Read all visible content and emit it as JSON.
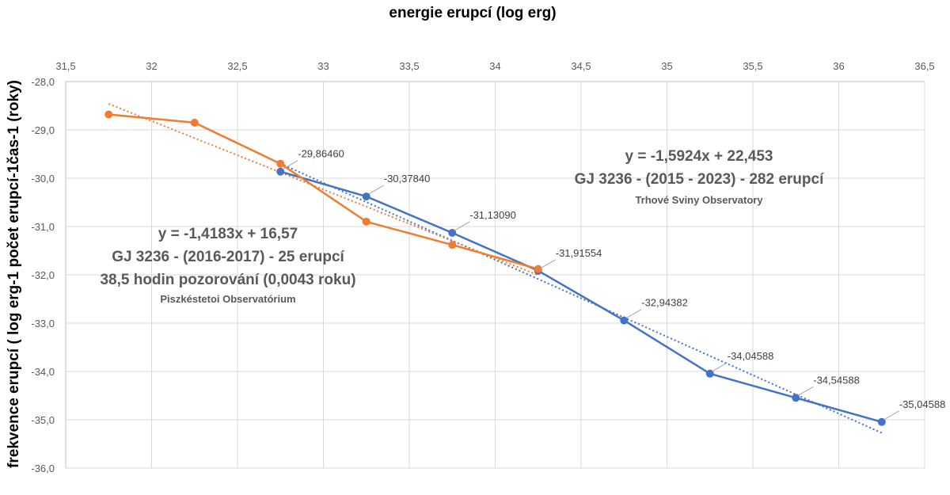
{
  "chart_data": {
    "type": "line",
    "title": "energie erupcí (log erg)",
    "ylabel": "frekvence erupcí ( log erg-1 počet erupcí-1čas-1 (roky)",
    "xlim": [
      31.5,
      36.5
    ],
    "ylim": [
      -36.0,
      -28.0
    ],
    "x_ticks": [
      31.5,
      32,
      32.5,
      33,
      33.5,
      34,
      34.5,
      35,
      35.5,
      36,
      36.5
    ],
    "x_tick_labels": [
      "31,5",
      "32",
      "32,5",
      "33",
      "33,5",
      "34",
      "34,5",
      "35",
      "35,5",
      "36",
      "36,5"
    ],
    "y_ticks": [
      -28,
      -29,
      -30,
      -31,
      -32,
      -33,
      -34,
      -35,
      -36
    ],
    "y_tick_labels": [
      "-28,0",
      "-29,0",
      "-30,0",
      "-31,0",
      "-32,0",
      "-33,0",
      "-34,0",
      "-35,0",
      "-36,0"
    ],
    "x_axis_position": "top",
    "grid": true,
    "series": [
      {
        "name": "GJ 3236 - (2015 - 2023) - 282 erupcí",
        "color": "#4472C4",
        "x": [
          32.75,
          33.25,
          33.75,
          34.25,
          34.75,
          35.25,
          35.75,
          36.25
        ],
        "y": [
          -29.8646,
          -30.3784,
          -31.1309,
          -31.91554,
          -32.94382,
          -34.04588,
          -34.54588,
          -35.04588
        ],
        "data_labels": [
          "-29,86460",
          "-30,37840",
          "-31,13090",
          "-31,91554",
          "-32,94382",
          "-34,04588",
          "-34,54588",
          "-35,04588"
        ],
        "trendline": {
          "slope": -1.5924,
          "intercept": 22.453,
          "x_range": [
            32.75,
            36.25
          ]
        }
      },
      {
        "name": "GJ 3236 - (2016-2017) - 25 erupcí",
        "color": "#ED7D31",
        "x": [
          31.75,
          32.25,
          32.75,
          33.25,
          33.75,
          34.25
        ],
        "y": [
          -28.68,
          -28.85,
          -29.7,
          -30.9,
          -31.38,
          -31.88
        ],
        "trendline": {
          "slope": -1.4183,
          "intercept": 16.57,
          "x_range": [
            31.75,
            34.25
          ]
        }
      }
    ],
    "annotations": {
      "blue": {
        "equation": "y = -1,5924x + 22,453",
        "name": "GJ 3236 - (2015 - 2023) - 282 erupcí",
        "observatory": "Trhové Sviny Observatory"
      },
      "orange": {
        "equation": "y = -1,4183x + 16,57",
        "name": "GJ 3236 - (2016-2017) - 25 erupcí",
        "hours": "38,5 hodin pozorování (0,0043 roku)",
        "observatory": "Piszkéstetoi Observatórium"
      }
    }
  }
}
